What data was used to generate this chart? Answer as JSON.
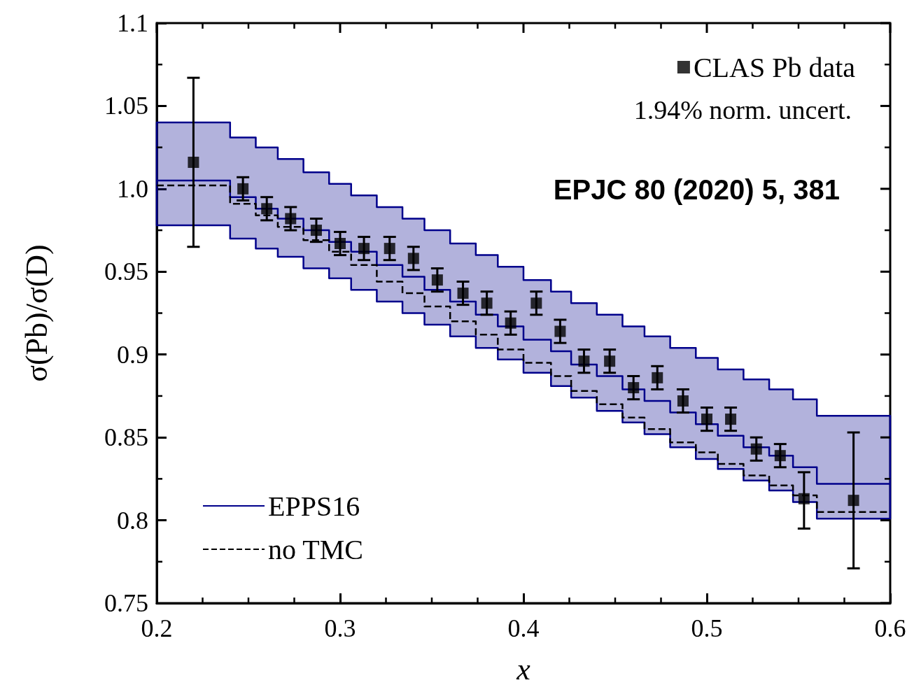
{
  "chart_data": {
    "type": "step",
    "xlabel": "x",
    "ylabel": "σ(Pb)/σ(D)",
    "xlim": [
      0.2,
      0.6
    ],
    "xticks": [
      0.2,
      0.3,
      0.4,
      0.5,
      0.6
    ],
    "ylim": [
      0.75,
      1.1
    ],
    "yticks": [
      0.75,
      0.8,
      0.85,
      0.9,
      0.95,
      {
        "value": 1,
        "label": "1.0"
      },
      1.05,
      1.1
    ],
    "grid": false,
    "legend": "top right",
    "annotations": [
      "1.94% norm. uncert.",
      "EPJC 80 (2020) 5, 381"
    ],
    "series": [
      {
        "name": "EPPS16",
        "color": "#00008b",
        "line_style": "solid",
        "x": [
          0.2,
          0.24,
          0.254,
          0.266,
          0.28,
          0.294,
          0.306,
          0.32,
          0.334,
          0.346,
          0.36,
          0.374,
          0.386,
          0.4,
          0.415,
          0.426,
          0.44,
          0.454,
          0.466,
          0.48,
          0.494,
          0.506,
          0.52,
          0.534,
          0.547,
          0.56,
          0.6
        ],
        "values": [
          1.005,
          0.995,
          0.988,
          0.982,
          0.975,
          0.968,
          0.962,
          0.954,
          0.947,
          0.939,
          0.932,
          0.924,
          0.917,
          0.909,
          0.902,
          0.894,
          0.887,
          0.879,
          0.872,
          0.865,
          0.858,
          0.851,
          0.844,
          0.839,
          0.832,
          0.822,
          0.822
        ],
        "lower": [
          0.978,
          0.97,
          0.964,
          0.959,
          0.952,
          0.946,
          0.939,
          0.932,
          0.925,
          0.918,
          0.911,
          0.904,
          0.897,
          0.889,
          0.881,
          0.874,
          0.866,
          0.859,
          0.852,
          0.844,
          0.837,
          0.831,
          0.824,
          0.818,
          0.811,
          0.801,
          0.801
        ],
        "upper": [
          1.04,
          1.031,
          1.025,
          1.018,
          1.01,
          1.003,
          0.996,
          0.989,
          0.982,
          0.975,
          0.967,
          0.96,
          0.953,
          0.945,
          0.938,
          0.931,
          0.924,
          0.917,
          0.911,
          0.904,
          0.898,
          0.891,
          0.885,
          0.879,
          0.873,
          0.863,
          0.863
        ]
      },
      {
        "name": "no TMC",
        "color": "#000000",
        "line_style": "dashed",
        "x": [
          0.2,
          0.24,
          0.254,
          0.266,
          0.28,
          0.294,
          0.306,
          0.32,
          0.334,
          0.346,
          0.36,
          0.374,
          0.386,
          0.4,
          0.415,
          0.426,
          0.44,
          0.454,
          0.466,
          0.48,
          0.494,
          0.506,
          0.52,
          0.534,
          0.547,
          0.56,
          0.6
        ],
        "values": [
          1.002,
          0.991,
          0.984,
          0.977,
          0.969,
          0.962,
          0.954,
          0.944,
          0.937,
          0.929,
          0.92,
          0.912,
          0.903,
          0.895,
          0.887,
          0.878,
          0.87,
          0.862,
          0.855,
          0.847,
          0.841,
          0.834,
          0.827,
          0.821,
          0.815,
          0.805,
          0.805
        ]
      },
      {
        "name": "CLAS Pb data",
        "type": "scatter",
        "color": "#000000",
        "marker": "square",
        "x": [
          0.22,
          0.247,
          0.26,
          0.273,
          0.287,
          0.3,
          0.313,
          0.327,
          0.34,
          0.353,
          0.367,
          0.38,
          0.393,
          0.407,
          0.42,
          0.433,
          0.447,
          0.46,
          0.473,
          0.487,
          0.5,
          0.513,
          0.527,
          0.54,
          0.553,
          0.58
        ],
        "values": [
          1.016,
          1.0,
          0.988,
          0.982,
          0.975,
          0.967,
          0.964,
          0.964,
          0.958,
          0.945,
          0.937,
          0.931,
          0.919,
          0.931,
          0.914,
          0.896,
          0.896,
          0.88,
          0.886,
          0.872,
          0.861,
          0.861,
          0.843,
          0.839,
          0.813,
          0.812
        ],
        "errors": [
          [
            0.965,
            1.067
          ],
          0.007,
          0.007,
          0.007,
          0.007,
          0.007,
          0.007,
          0.007,
          0.007,
          0.007,
          0.007,
          0.007,
          0.007,
          0.007,
          0.007,
          0.007,
          0.007,
          0.007,
          0.007,
          0.007,
          0.007,
          0.007,
          0.007,
          0.007,
          [
            0.795,
            0.829
          ],
          [
            0.771,
            0.853
          ]
        ]
      }
    ]
  }
}
